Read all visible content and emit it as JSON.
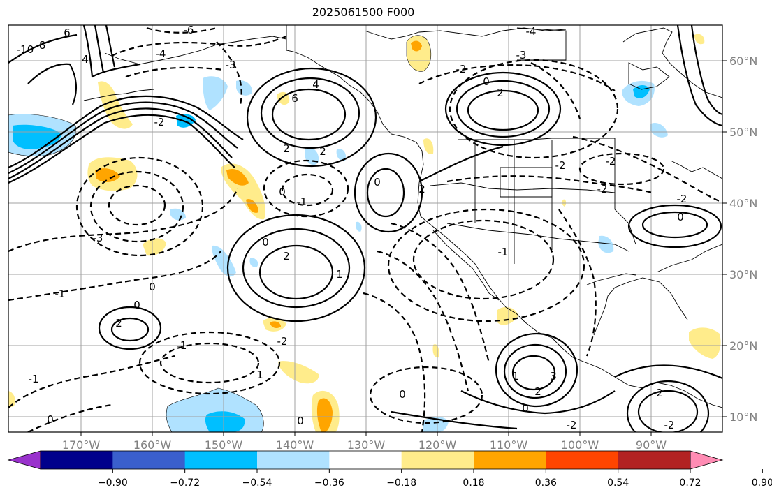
{
  "title": "2025061500 F000",
  "lon_labels": [
    "170°W",
    "160°W",
    "150°W",
    "140°W",
    "130°W",
    "120°W",
    "110°W",
    "100°W",
    "90°W"
  ],
  "lat_labels": [
    "60°N",
    "50°N",
    "40°N",
    "30°N",
    "20°N",
    "10°N"
  ],
  "colorbar": {
    "colors": [
      "#9932cc",
      "#00008b",
      "#3a5fcd",
      "#00bfff",
      "#b0e2ff",
      "#ffffff",
      "#ffec8b",
      "#ffa500",
      "#ff4500",
      "#b22222",
      "#ff8cb4"
    ],
    "ticks": [
      "−0.90",
      "−0.72",
      "−0.54",
      "−0.36",
      "−0.18",
      "0.18",
      "0.36",
      "0.54",
      "0.72",
      "0.90"
    ]
  },
  "contour_labels": [
    {
      "text": "6"
    },
    {
      "text": "-8"
    },
    {
      "text": "-10"
    },
    {
      "text": "-6"
    },
    {
      "text": "4"
    },
    {
      "text": "-4"
    },
    {
      "text": "-3"
    },
    {
      "text": "6"
    },
    {
      "text": "4"
    },
    {
      "text": "2"
    },
    {
      "text": "0"
    },
    {
      "text": "-2"
    },
    {
      "text": "2"
    },
    {
      "text": "-4"
    },
    {
      "text": "-3"
    },
    {
      "text": "0"
    },
    {
      "text": "-1"
    },
    {
      "text": "0"
    },
    {
      "text": "2"
    },
    {
      "text": "-2"
    },
    {
      "text": "2"
    },
    {
      "text": "-1"
    },
    {
      "text": "-2"
    },
    {
      "text": "-2"
    },
    {
      "text": "2"
    },
    {
      "text": "0"
    },
    {
      "text": "0"
    },
    {
      "text": "2"
    },
    {
      "text": "1"
    },
    {
      "text": "-1"
    },
    {
      "text": "0"
    },
    {
      "text": "1"
    },
    {
      "text": "-1"
    },
    {
      "text": "0"
    },
    {
      "text": "-1"
    },
    {
      "text": "1"
    },
    {
      "text": "3"
    },
    {
      "text": "2"
    },
    {
      "text": "0"
    },
    {
      "text": "-2"
    },
    {
      "text": "0"
    },
    {
      "text": "-2"
    },
    {
      "text": "0"
    },
    {
      "text": "-3"
    },
    {
      "text": "0"
    },
    {
      "text": "-2"
    },
    {
      "text": "2"
    },
    {
      "text": "-2"
    },
    {
      "text": "-2"
    }
  ]
}
